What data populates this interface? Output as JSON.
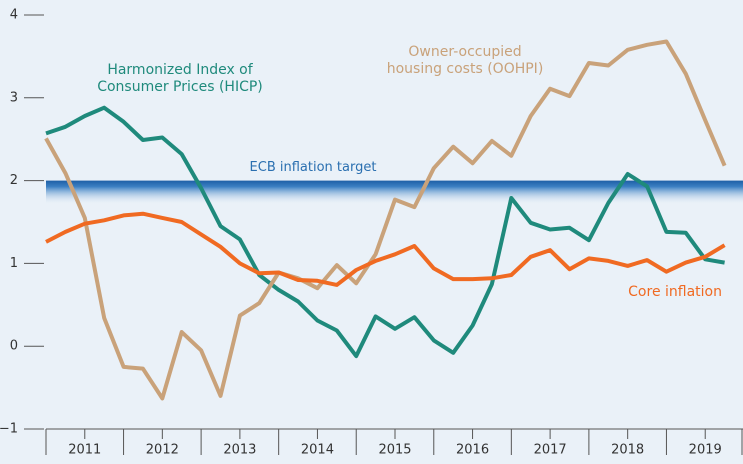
{
  "chart_data": {
    "type": "line",
    "x": [
      2011,
      2011.25,
      2011.5,
      2011.75,
      2012,
      2012.25,
      2012.5,
      2012.75,
      2013,
      2013.25,
      2013.5,
      2013.75,
      2014,
      2014.25,
      2014.5,
      2014.75,
      2015,
      2015.25,
      2015.5,
      2015.75,
      2016,
      2016.25,
      2016.5,
      2016.75,
      2017,
      2017.25,
      2017.5,
      2017.75,
      2018,
      2018.25,
      2018.5,
      2018.75,
      2019,
      2019.25,
      2019.5,
      2019.75
    ],
    "series": [
      {
        "name": [
          "Harmonized Index of",
          "Consumer Prices (HICP)"
        ],
        "color": "#1f8a7c",
        "values": [
          2.57,
          2.65,
          2.78,
          2.88,
          2.71,
          2.49,
          2.52,
          2.32,
          1.91,
          1.45,
          1.29,
          0.86,
          0.68,
          0.54,
          0.31,
          0.19,
          -0.12,
          0.36,
          0.21,
          0.35,
          0.07,
          -0.08,
          0.25,
          0.75,
          1.79,
          1.49,
          1.41,
          1.43,
          1.28,
          1.73,
          2.08,
          1.93,
          1.38,
          1.37,
          1.05,
          1.01
        ]
      },
      {
        "name": [
          "Owner-occupied",
          "housing costs (OOHPI)"
        ],
        "color": "#c9a27a",
        "values": [
          2.51,
          2.09,
          1.55,
          0.34,
          -0.25,
          -0.27,
          -0.63,
          0.17,
          -0.05,
          -0.6,
          0.37,
          0.52,
          0.89,
          0.82,
          0.7,
          0.98,
          0.76,
          1.11,
          1.77,
          1.68,
          2.15,
          2.41,
          2.21,
          2.48,
          2.3,
          2.78,
          3.11,
          3.02,
          3.42,
          3.39,
          3.58,
          3.64,
          3.68,
          3.29,
          2.73,
          2.18
        ]
      },
      {
        "name": [
          "Core inflation"
        ],
        "color": "#f06a22",
        "values": [
          1.26,
          1.38,
          1.48,
          1.52,
          1.58,
          1.6,
          1.55,
          1.5,
          1.35,
          1.2,
          1.0,
          0.88,
          0.89,
          0.8,
          0.79,
          0.74,
          0.92,
          1.03,
          1.11,
          1.21,
          0.94,
          0.81,
          0.81,
          0.82,
          0.86,
          1.08,
          1.16,
          0.93,
          1.06,
          1.03,
          0.97,
          1.04,
          0.9,
          1.01,
          1.08,
          1.22
        ]
      }
    ],
    "target": {
      "value": 2,
      "label": "ECB inflation target",
      "color": "#2a6fb0"
    },
    "xlim": [
      2011,
      2020
    ],
    "xticks": [
      {
        "value": 2011.5,
        "label": "2011"
      },
      {
        "value": 2012.5,
        "label": "2012"
      },
      {
        "value": 2013.5,
        "label": "2013"
      },
      {
        "value": 2014.5,
        "label": "2014"
      },
      {
        "value": 2015.5,
        "label": "2015"
      },
      {
        "value": 2016.5,
        "label": "2016"
      },
      {
        "value": 2017.5,
        "label": "2017"
      },
      {
        "value": 2018.5,
        "label": "2018"
      },
      {
        "value": 2019.5,
        "label": "2019"
      }
    ],
    "xboundaries": [
      2011,
      2012,
      2013,
      2014,
      2015,
      2016,
      2017,
      2018,
      2019,
      2020
    ],
    "ylim": [
      -1,
      4
    ],
    "yticks": [
      {
        "value": -1,
        "label": "−1"
      },
      0,
      1,
      2,
      3,
      4
    ]
  }
}
